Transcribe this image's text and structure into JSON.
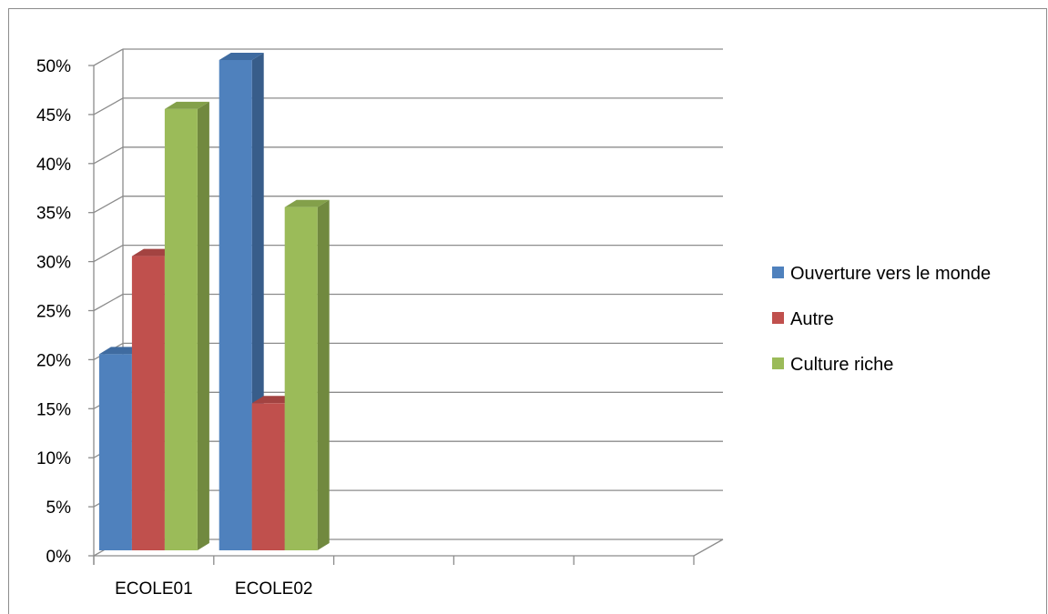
{
  "chart_data": {
    "type": "bar",
    "style": "3d-clustered-column",
    "categories": [
      "ECOLE01",
      "ECOLE02",
      "",
      "",
      ""
    ],
    "series": [
      {
        "name": "Ouverture vers le monde",
        "values": [
          20,
          50,
          null,
          null,
          null
        ],
        "color": "#4F81BD",
        "side_color": "#385D8A",
        "top_color": "#3F6BA0"
      },
      {
        "name": "Autre",
        "values": [
          30,
          15,
          null,
          null,
          null
        ],
        "color": "#C0504D",
        "side_color": "#8C3A38",
        "top_color": "#A34341"
      },
      {
        "name": "Culture riche",
        "values": [
          45,
          35,
          null,
          null,
          null
        ],
        "color": "#9BBB59",
        "side_color": "#71893F",
        "top_color": "#83A04A"
      }
    ],
    "yticks": [
      "0%",
      "5%",
      "10%",
      "15%",
      "20%",
      "25%",
      "30%",
      "35%",
      "40%",
      "45%",
      "50%"
    ],
    "ylim": [
      0,
      50
    ],
    "unit": "%",
    "grid": true,
    "legend_position": "right",
    "title": "",
    "xlabel": "",
    "ylabel": ""
  }
}
